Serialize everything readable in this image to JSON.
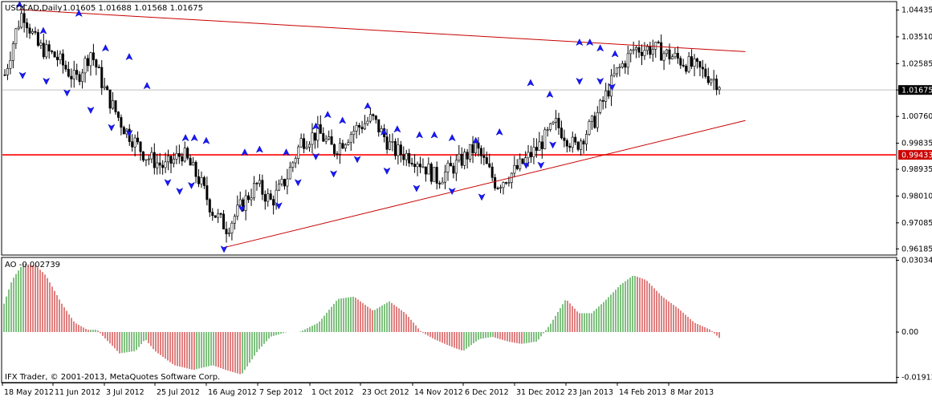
{
  "chart_data": [
    {
      "type": "candlestick",
      "symbol_label": "USDCAD,Daily",
      "ohlc_label": "1.01605 1.01688 1.01568 1.01675",
      "ylim": [
        0.96,
        1.047
      ],
      "y_ticks": [
        1.04435,
        1.0351,
        1.02585,
        1.01675,
        1.0076,
        0.99835,
        0.98935,
        0.9801,
        0.97085,
        0.96185
      ],
      "y_tick_labels": [
        "1.04435",
        "1.03510",
        "1.02585",
        "1.01675",
        "1.00760",
        "0.99835",
        "0.98935",
        "0.98010",
        "0.97085",
        "0.96185"
      ],
      "current_price_label": "1.01675",
      "current_price": 1.01675,
      "support_level_label": "0.99433",
      "support_level": 0.99433,
      "bars": 260,
      "price_path": [
        [
          0,
          1.022
        ],
        [
          8,
          1.038
        ],
        [
          12,
          1.044
        ],
        [
          22,
          1.032
        ],
        [
          35,
          1.028
        ],
        [
          48,
          1.02
        ],
        [
          58,
          1.03
        ],
        [
          68,
          1.016
        ],
        [
          80,
          1.004
        ],
        [
          95,
          0.994
        ],
        [
          108,
          0.99
        ],
        [
          120,
          0.995
        ],
        [
          132,
          0.985
        ],
        [
          140,
          0.975
        ],
        [
          150,
          0.969
        ],
        [
          160,
          0.977
        ],
        [
          170,
          0.984
        ],
        [
          180,
          0.978
        ],
        [
          190,
          0.986
        ],
        [
          200,
          0.999
        ],
        [
          212,
          1.002
        ],
        [
          222,
          0.996
        ],
        [
          236,
          1.003
        ],
        [
          248,
          1.007
        ],
        [
          262,
          0.996
        ],
        [
          278,
          0.993
        ],
        [
          292,
          0.986
        ],
        [
          305,
          0.991
        ],
        [
          318,
          0.997
        ],
        [
          332,
          0.984
        ],
        [
          345,
          0.989
        ],
        [
          360,
          0.997
        ],
        [
          372,
          1.005
        ],
        [
          385,
          0.997
        ],
        [
          398,
          1.006
        ],
        [
          412,
          1.022
        ],
        [
          425,
          1.031
        ],
        [
          438,
          1.031
        ],
        [
          452,
          1.028
        ],
        [
          468,
          1.024
        ],
        [
          480,
          1.02
        ],
        [
          488,
          1.017
        ]
      ],
      "trendlines": [
        {
          "name": "upper-resistance",
          "from": [
            10,
            1.0445
          ],
          "to": [
            500,
            1.03
          ]
        },
        {
          "name": "lower-support",
          "from": [
            148,
            0.9623
          ],
          "to": [
            500,
            1.0062
          ]
        }
      ],
      "fractals_up": [
        [
          10,
          1.046
        ],
        [
          26,
          1.037
        ],
        [
          50,
          1.043
        ],
        [
          68,
          1.031
        ],
        [
          84,
          1.028
        ],
        [
          96,
          1.018
        ],
        [
          122,
          1.0
        ],
        [
          128,
          1.0
        ],
        [
          136,
          0.999
        ],
        [
          162,
          0.995
        ],
        [
          172,
          0.996
        ],
        [
          190,
          0.995
        ],
        [
          210,
          1.004
        ],
        [
          218,
          1.008
        ],
        [
          228,
          1.006
        ],
        [
          245,
          1.011
        ],
        [
          256,
          1.002
        ],
        [
          265,
          1.003
        ],
        [
          280,
          1.001
        ],
        [
          290,
          1.001
        ],
        [
          302,
          1.0
        ],
        [
          318,
          0.999
        ],
        [
          334,
          1.002
        ],
        [
          355,
          1.019
        ],
        [
          368,
          1.015
        ],
        [
          388,
          1.033
        ],
        [
          395,
          1.033
        ],
        [
          402,
          1.031
        ],
        [
          412,
          1.029
        ]
      ],
      "fractals_down": [
        [
          12,
          1.022
        ],
        [
          28,
          1.02
        ],
        [
          42,
          1.016
        ],
        [
          58,
          1.01
        ],
        [
          72,
          1.004
        ],
        [
          84,
          1.002
        ],
        [
          110,
          0.985
        ],
        [
          118,
          0.982
        ],
        [
          126,
          0.984
        ],
        [
          148,
          0.962
        ],
        [
          160,
          0.976
        ],
        [
          185,
          0.977
        ],
        [
          198,
          0.985
        ],
        [
          210,
          0.994
        ],
        [
          222,
          0.988
        ],
        [
          238,
          0.993
        ],
        [
          258,
          0.989
        ],
        [
          278,
          0.983
        ],
        [
          302,
          0.982
        ],
        [
          322,
          0.98
        ],
        [
          352,
          0.991
        ],
        [
          362,
          0.991
        ],
        [
          370,
          0.998
        ],
        [
          388,
          1.02
        ],
        [
          402,
          1.02
        ],
        [
          410,
          1.018
        ]
      ]
    },
    {
      "type": "histogram",
      "indicator_label": "AO -0.002739",
      "ylim": [
        -0.021,
        0.0312
      ],
      "y_ticks": [
        0.030348,
        0.0,
        -0.01913
      ],
      "y_tick_labels": [
        "0.030348",
        "0.00",
        "-0.01913"
      ],
      "ao_path": [
        [
          0,
          0.012
        ],
        [
          5,
          0.022
        ],
        [
          12,
          0.029
        ],
        [
          20,
          0.028
        ],
        [
          26,
          0.024
        ],
        [
          36,
          0.012
        ],
        [
          44,
          0.004
        ],
        [
          52,
          0.001
        ],
        [
          58,
          0.001
        ],
        [
          62,
          -0.002
        ],
        [
          72,
          -0.009
        ],
        [
          82,
          -0.008
        ],
        [
          88,
          -0.003
        ],
        [
          94,
          -0.008
        ],
        [
          106,
          -0.014
        ],
        [
          118,
          -0.016
        ],
        [
          130,
          -0.014
        ],
        [
          138,
          -0.016
        ],
        [
          148,
          -0.018
        ],
        [
          158,
          -0.008
        ],
        [
          166,
          -0.002
        ],
        [
          176,
          0.0
        ],
        [
          184,
          0.0
        ],
        [
          196,
          0.004
        ],
        [
          208,
          0.014
        ],
        [
          218,
          0.015
        ],
        [
          230,
          0.009
        ],
        [
          240,
          0.013
        ],
        [
          250,
          0.008
        ],
        [
          260,
          0.0
        ],
        [
          268,
          -0.003
        ],
        [
          278,
          -0.006
        ],
        [
          286,
          -0.008
        ],
        [
          296,
          -0.003
        ],
        [
          304,
          -0.002
        ],
        [
          314,
          -0.004
        ],
        [
          322,
          -0.005
        ],
        [
          332,
          -0.004
        ],
        [
          340,
          0.003
        ],
        [
          350,
          0.014
        ],
        [
          358,
          0.008
        ],
        [
          366,
          0.008
        ],
        [
          374,
          0.013
        ],
        [
          384,
          0.02
        ],
        [
          392,
          0.024
        ],
        [
          400,
          0.022
        ],
        [
          410,
          0.015
        ],
        [
          420,
          0.01
        ],
        [
          430,
          0.004
        ],
        [
          440,
          0.001
        ],
        [
          446,
          -0.002739
        ]
      ],
      "positive_color": "#008000",
      "negative_color": "#c00000"
    }
  ],
  "x_labels": [
    "18 May 2012",
    "11 Jun 2012",
    "3 Jul 2012",
    "25 Jul 2012",
    "16 Aug 2012",
    "7 Sep 2012",
    "1 Oct 2012",
    "23 Oct 2012",
    "14 Nov 2012",
    "6 Dec 2012",
    "31 Dec 2012",
    "23 Jan 2013",
    "14 Feb 2013",
    "8 Mar 2013"
  ],
  "watermark": "IFX Trader, © 2001-2013, MetaQuotes Software Corp.",
  "colors": {
    "candle_up_body": "#ffffff",
    "candle_down_body": "#000000",
    "candle_outline": "#000000",
    "trendline": "#c80000",
    "support_line": "#ff0000",
    "fractal": "#1a1aff",
    "label_box": "#cc0000"
  }
}
